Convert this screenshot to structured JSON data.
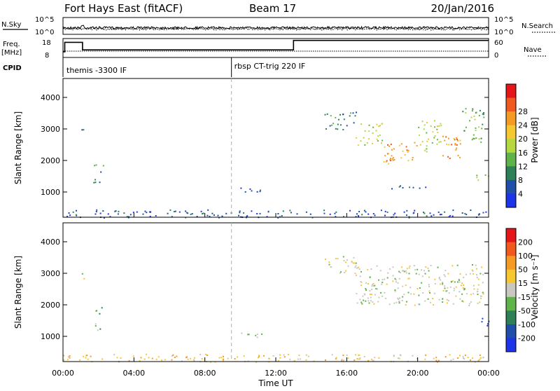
{
  "header": {
    "station": "Fort Hays East (fitACF)",
    "beam": "Beam 17",
    "date": "20/Jan/2016"
  },
  "top_panels": {
    "nsky_label": "N.Sky",
    "nsearch_label": "N.Search",
    "freq_label_line1": "Freq.",
    "freq_label_line2": "[MHz]",
    "nave_label": "Nave",
    "cpid_label": "CPID",
    "left_ticks_noise": [
      "10^5",
      "10^0"
    ],
    "right_ticks_noise": [
      "10^5",
      "10^0"
    ],
    "left_ticks_freq": [
      "18",
      "8"
    ],
    "right_ticks_freq": [
      "60",
      "0"
    ],
    "cpid_entries": [
      {
        "label": "themis -3300 IF",
        "start_hour": 0
      },
      {
        "label": "rbsp CT-trig 220 IF",
        "start_hour": 9.5
      }
    ],
    "freq_steps": [
      {
        "from": 0,
        "to": 0.1,
        "mhz": 11
      },
      {
        "from": 0.1,
        "to": 1.1,
        "mhz": 16
      },
      {
        "from": 1.1,
        "to": 13.0,
        "mhz": 12
      },
      {
        "from": 13.0,
        "to": 24.0,
        "mhz": 17
      }
    ],
    "freq_range": [
      8,
      18
    ],
    "nave_range": [
      0,
      60
    ],
    "nave_level": 20
  },
  "chart_data": [
    {
      "type": "heatmap",
      "name": "power",
      "ylabel": "Slant Range [km]",
      "xlabel": "",
      "xlim": [
        0,
        24
      ],
      "ylim": [
        200,
        4600
      ],
      "yticks": [
        "1000",
        "2000",
        "3000",
        "4000"
      ],
      "ytick_values": [
        1000,
        2000,
        3000,
        4000
      ],
      "colorbar_label": "Power [dB]",
      "colorbar_ticks": [
        "4",
        "8",
        "12",
        "16",
        "20",
        "24",
        "28"
      ],
      "colorbar_colors": [
        "#1d34e8",
        "#1f4fa8",
        "#2e8057",
        "#5fb34a",
        "#b5d740",
        "#f5c832",
        "#f59a25",
        "#f05a1f",
        "#e5161a"
      ],
      "blobs": [
        {
          "t0": 1.0,
          "t1": 1.2,
          "r0": 2700,
          "r1": 3200,
          "level": 1
        },
        {
          "t0": 1.7,
          "t1": 2.3,
          "r0": 1650,
          "r1": 1950,
          "level": 2
        },
        {
          "t0": 1.7,
          "t1": 2.3,
          "r0": 1150,
          "r1": 1450,
          "level": 2
        },
        {
          "t0": 9.8,
          "t1": 11.2,
          "r0": 950,
          "r1": 1150,
          "level": 1
        },
        {
          "t0": 14.7,
          "t1": 16.5,
          "r0": 3000,
          "r1": 3550,
          "level": 2
        },
        {
          "t0": 16.5,
          "t1": 18.0,
          "r0": 2500,
          "r1": 3200,
          "level": 4
        },
        {
          "t0": 18.0,
          "t1": 20.0,
          "r0": 1900,
          "r1": 2600,
          "level": 6
        },
        {
          "t0": 20.0,
          "t1": 21.3,
          "r0": 2300,
          "r1": 3300,
          "level": 4
        },
        {
          "t0": 21.3,
          "t1": 22.5,
          "r0": 2000,
          "r1": 2800,
          "level": 6
        },
        {
          "t0": 22.5,
          "t1": 23.7,
          "r0": 2600,
          "r1": 3700,
          "level": 3
        },
        {
          "t0": 23.3,
          "t1": 24.0,
          "r0": 1300,
          "r1": 1600,
          "level": 4
        },
        {
          "t0": 18.5,
          "t1": 20.5,
          "r0": 1100,
          "r1": 1250,
          "level": 1
        },
        {
          "t0": 0.0,
          "t1": 24.0,
          "r0": 200,
          "r1": 450,
          "level": 1
        }
      ]
    },
    {
      "type": "heatmap",
      "name": "velocity",
      "ylabel": "Slant Range [km]",
      "xlabel": "Time UT",
      "xlim": [
        0,
        24
      ],
      "ylim": [
        200,
        4600
      ],
      "xticks": [
        "00:00",
        "04:00",
        "08:00",
        "12:00",
        "16:00",
        "20:00",
        "00:00"
      ],
      "xtick_values": [
        0,
        4,
        8,
        12,
        16,
        20,
        24
      ],
      "yticks": [
        "1000",
        "2000",
        "3000",
        "4000"
      ],
      "ytick_values": [
        1000,
        2000,
        3000,
        4000
      ],
      "colorbar_label": "Velocity [m s⁻¹]",
      "colorbar_ticks": [
        "200",
        "100",
        "50",
        "15",
        "-15",
        "-50",
        "-100",
        "-200"
      ],
      "colorbar_colors": [
        "#1d34e8",
        "#1f4fa8",
        "#2e8057",
        "#5fb34a",
        "#c8c8c0",
        "#f5c832",
        "#f59a25",
        "#f05a1f",
        "#e5161a"
      ],
      "blobs": [
        {
          "t0": 1.0,
          "t1": 1.2,
          "r0": 2700,
          "r1": 3200,
          "level": 4
        },
        {
          "t0": 1.7,
          "t1": 2.3,
          "r0": 1650,
          "r1": 1950,
          "level": 3
        },
        {
          "t0": 1.7,
          "t1": 2.3,
          "r0": 1150,
          "r1": 1450,
          "level": 3
        },
        {
          "t0": 9.8,
          "t1": 11.2,
          "r0": 950,
          "r1": 1150,
          "level": 3
        },
        {
          "t0": 14.7,
          "t1": 16.5,
          "r0": 3000,
          "r1": 3550,
          "level": 4
        },
        {
          "t0": 16.5,
          "t1": 23.7,
          "r0": 2000,
          "r1": 3300,
          "level": 4
        },
        {
          "t0": 23.3,
          "t1": 24.0,
          "r0": 1300,
          "r1": 1600,
          "level": 0
        },
        {
          "t0": 0.0,
          "t1": 24.0,
          "r0": 200,
          "r1": 450,
          "level": 5
        }
      ]
    }
  ]
}
